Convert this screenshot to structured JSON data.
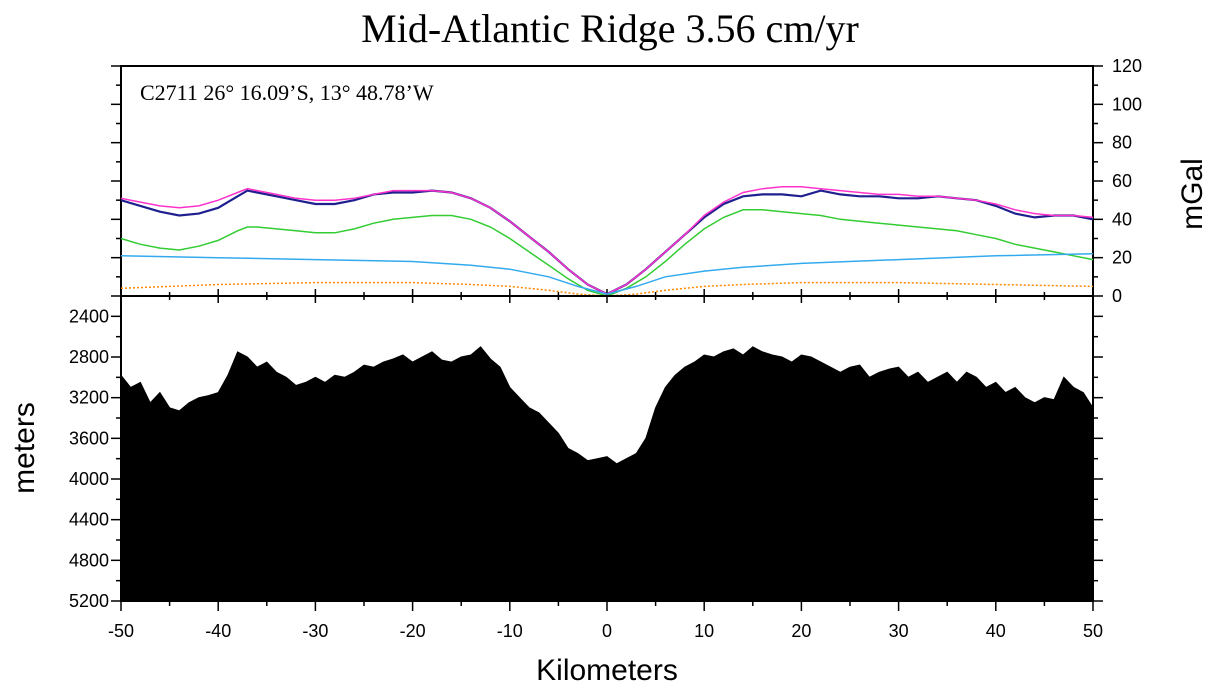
{
  "title": "Mid-Atlantic Ridge  3.56 cm/yr",
  "profile_label": "C2711   26° 16.09’S, 13° 48.78’W",
  "chart_data": [
    {
      "type": "line",
      "panel": "gravity",
      "ylabel": "mGal",
      "xlim": [
        -50,
        50
      ],
      "ylim": [
        0,
        120
      ],
      "yticks": [
        0,
        20,
        40,
        60,
        80,
        100,
        120
      ],
      "grid": false,
      "series": [
        {
          "color": "#1f1f8f",
          "x": [
            -50,
            -48,
            -46,
            -44,
            -42,
            -40,
            -38,
            -37,
            -36,
            -34,
            -32,
            -30,
            -28,
            -26,
            -24,
            -22,
            -20,
            -18,
            -16,
            -14,
            -12,
            -10,
            -8,
            -6,
            -4,
            -2,
            0,
            2,
            4,
            6,
            8,
            10,
            12,
            14,
            16,
            18,
            20,
            22,
            24,
            26,
            28,
            30,
            32,
            34,
            36,
            38,
            40,
            42,
            44,
            46,
            48,
            50
          ],
          "y": [
            50,
            47,
            44,
            42,
            43,
            46,
            52,
            55,
            54,
            52,
            50,
            48,
            48,
            50,
            53,
            54,
            54,
            55,
            54,
            51,
            46,
            39,
            31,
            23,
            14,
            6,
            1,
            6,
            14,
            23,
            32,
            41,
            48,
            52,
            53,
            53,
            52,
            55,
            53,
            52,
            52,
            51,
            51,
            52,
            51,
            50,
            47,
            43,
            41,
            42,
            42,
            40
          ]
        },
        {
          "color": "#ff33cc",
          "x": [
            -50,
            -48,
            -46,
            -44,
            -42,
            -40,
            -38,
            -37,
            -36,
            -34,
            -32,
            -30,
            -28,
            -26,
            -24,
            -22,
            -20,
            -18,
            -16,
            -14,
            -12,
            -10,
            -8,
            -6,
            -4,
            -2,
            0,
            2,
            4,
            6,
            8,
            10,
            12,
            14,
            16,
            18,
            20,
            22,
            24,
            26,
            28,
            30,
            32,
            34,
            36,
            38,
            40,
            42,
            44,
            46,
            48,
            50
          ],
          "y": [
            51,
            49,
            47,
            46,
            47,
            50,
            54,
            56,
            55,
            53,
            51,
            50,
            50,
            51,
            53,
            55,
            55,
            55,
            54,
            51,
            46,
            39,
            31,
            23,
            14,
            6,
            1,
            6,
            14,
            23,
            32,
            42,
            49,
            54,
            56,
            57,
            57,
            56,
            55,
            54,
            53,
            53,
            52,
            52,
            51,
            50,
            48,
            45,
            43,
            42,
            42,
            41
          ]
        },
        {
          "color": "#33cc33",
          "x": [
            -50,
            -48,
            -46,
            -44,
            -42,
            -40,
            -38,
            -37,
            -36,
            -34,
            -32,
            -30,
            -28,
            -26,
            -24,
            -22,
            -20,
            -18,
            -16,
            -14,
            -12,
            -10,
            -8,
            -6,
            -4,
            -2,
            0,
            2,
            4,
            6,
            8,
            10,
            12,
            14,
            16,
            18,
            20,
            22,
            24,
            26,
            28,
            30,
            32,
            34,
            36,
            38,
            40,
            42,
            44,
            46,
            48,
            50
          ],
          "y": [
            30,
            27,
            25,
            24,
            26,
            29,
            34,
            36,
            36,
            35,
            34,
            33,
            33,
            35,
            38,
            40,
            41,
            42,
            42,
            40,
            36,
            30,
            23,
            16,
            9,
            3,
            0,
            4,
            10,
            18,
            27,
            35,
            41,
            45,
            45,
            44,
            43,
            42,
            40,
            39,
            38,
            37,
            36,
            35,
            34,
            32,
            30,
            27,
            25,
            23,
            21,
            19
          ]
        },
        {
          "color": "#33aaee",
          "x": [
            -50,
            -40,
            -30,
            -20,
            -14,
            -10,
            -6,
            -3,
            0,
            3,
            6,
            10,
            14,
            20,
            30,
            40,
            50
          ],
          "y": [
            21,
            20,
            19,
            18,
            16,
            14,
            10,
            5,
            1,
            5,
            10,
            13,
            15,
            17,
            19,
            21,
            22
          ]
        },
        {
          "color": "#ff8800",
          "dashed": true,
          "x": [
            -50,
            -40,
            -30,
            -20,
            -14,
            -10,
            -6,
            -3,
            0,
            3,
            6,
            10,
            14,
            20,
            30,
            40,
            50
          ],
          "y": [
            4,
            6,
            7,
            7,
            6,
            5,
            3,
            1,
            0,
            1,
            3,
            5,
            6,
            7,
            7,
            6,
            5
          ]
        }
      ]
    },
    {
      "type": "area",
      "panel": "bathymetry",
      "ylabel": "meters",
      "xlabel": "Kilometers",
      "xlim": [
        -50,
        50
      ],
      "ylim": [
        5200,
        2200
      ],
      "yticks": [
        2400,
        2800,
        3200,
        3600,
        4000,
        4400,
        4800,
        5200
      ],
      "xticks": [
        -50,
        -40,
        -30,
        -20,
        -10,
        0,
        10,
        20,
        30,
        40,
        50
      ],
      "fill": "#000000",
      "x": [
        -50,
        -49,
        -48,
        -47,
        -46,
        -45,
        -44,
        -43,
        -42,
        -41,
        -40,
        -39,
        -38,
        -37,
        -36,
        -35,
        -34,
        -33,
        -32,
        -31,
        -30,
        -29,
        -28,
        -27,
        -26,
        -25,
        -24,
        -23,
        -22,
        -21,
        -20,
        -19,
        -18,
        -17,
        -16,
        -15,
        -14,
        -13,
        -12,
        -11,
        -10,
        -9,
        -8,
        -7,
        -6,
        -5,
        -4,
        -3,
        -2,
        -1,
        0,
        1,
        2,
        3,
        4,
        5,
        6,
        7,
        8,
        9,
        10,
        11,
        12,
        13,
        14,
        15,
        16,
        17,
        18,
        19,
        20,
        21,
        22,
        23,
        24,
        25,
        26,
        27,
        28,
        29,
        30,
        31,
        32,
        33,
        34,
        35,
        36,
        37,
        38,
        39,
        40,
        41,
        42,
        43,
        44,
        45,
        46,
        47,
        48,
        49,
        50
      ],
      "y": [
        2980,
        3100,
        3050,
        3250,
        3150,
        3300,
        3330,
        3250,
        3200,
        3180,
        3150,
        2980,
        2750,
        2800,
        2900,
        2850,
        2950,
        3000,
        3080,
        3050,
        3000,
        3050,
        2980,
        3000,
        2950,
        2880,
        2900,
        2850,
        2820,
        2780,
        2850,
        2800,
        2750,
        2830,
        2850,
        2800,
        2780,
        2700,
        2820,
        2900,
        3100,
        3200,
        3300,
        3350,
        3450,
        3550,
        3700,
        3750,
        3820,
        3800,
        3780,
        3850,
        3800,
        3750,
        3600,
        3300,
        3100,
        2980,
        2900,
        2850,
        2780,
        2800,
        2750,
        2720,
        2780,
        2700,
        2750,
        2780,
        2800,
        2850,
        2780,
        2800,
        2850,
        2900,
        2950,
        2900,
        2880,
        3000,
        2950,
        2920,
        2900,
        3000,
        2950,
        3050,
        3000,
        2950,
        3050,
        2950,
        3000,
        3100,
        3050,
        3150,
        3100,
        3200,
        3250,
        3200,
        3220,
        3000,
        3100,
        3150,
        3300
      ]
    }
  ]
}
